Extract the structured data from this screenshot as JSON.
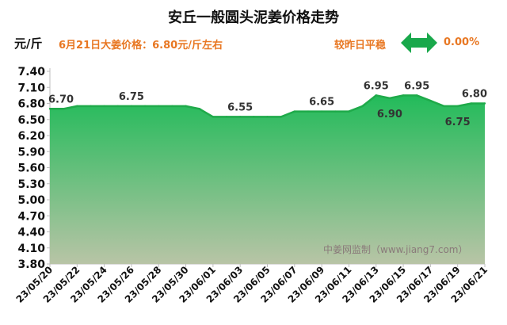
{
  "header": {
    "title": "安丘一般圆头泥姜价格走势",
    "unit": "元/斤",
    "price_note": "6月21日大姜价格：6.80元/斤左右",
    "comparison_label": "较昨日平稳",
    "change_pct": "0.00%"
  },
  "watermark": "中姜网监制（www.jiang7.com）",
  "icons": {
    "trend": "double-arrow-icon"
  },
  "colors": {
    "accent": "#e87722",
    "area_top": "#22bb5a",
    "area_bottom": "#b8c4a6",
    "line": "#1faa4a",
    "arrow": "#19a84b"
  },
  "chart_data": {
    "type": "area",
    "title": "安丘一般圆头泥姜价格走势",
    "ylabel": "元/斤",
    "ylim": [
      3.8,
      7.4
    ],
    "yticks": [
      "7.40",
      "7.10",
      "6.80",
      "6.50",
      "6.20",
      "5.90",
      "5.60",
      "5.30",
      "5.00",
      "4.70",
      "4.40",
      "4.10",
      "3.80"
    ],
    "x": [
      "23/05/20",
      "23/05/21",
      "23/05/22",
      "23/05/23",
      "23/05/24",
      "23/05/25",
      "23/05/26",
      "23/05/27",
      "23/05/28",
      "23/05/29",
      "23/05/30",
      "23/05/31",
      "23/06/01",
      "23/06/02",
      "23/06/03",
      "23/06/04",
      "23/06/05",
      "23/06/06",
      "23/06/07",
      "23/06/08",
      "23/06/09",
      "23/06/10",
      "23/06/11",
      "23/06/12",
      "23/06/13",
      "23/06/14",
      "23/06/15",
      "23/06/16",
      "23/06/17",
      "23/06/18",
      "23/06/19",
      "23/06/20",
      "23/06/21"
    ],
    "x_tick_labels": [
      "23/05/20",
      "23/05/22",
      "23/05/24",
      "23/05/26",
      "23/05/28",
      "23/05/30",
      "23/06/01",
      "23/06/03",
      "23/06/05",
      "23/06/07",
      "23/06/09",
      "23/06/11",
      "23/06/13",
      "23/06/15",
      "23/06/17",
      "23/06/19",
      "23/06/21"
    ],
    "values": [
      6.7,
      6.7,
      6.75,
      6.75,
      6.75,
      6.75,
      6.75,
      6.75,
      6.75,
      6.75,
      6.75,
      6.7,
      6.55,
      6.55,
      6.55,
      6.55,
      6.55,
      6.55,
      6.65,
      6.65,
      6.65,
      6.65,
      6.65,
      6.75,
      6.95,
      6.9,
      6.95,
      6.95,
      6.85,
      6.75,
      6.75,
      6.8,
      6.8
    ],
    "data_labels": [
      {
        "x": "23/05/20",
        "value": "6.70"
      },
      {
        "x": "23/05/26",
        "value": "6.75"
      },
      {
        "x": "23/06/03",
        "value": "6.55"
      },
      {
        "x": "23/06/09",
        "value": "6.65"
      },
      {
        "x": "23/06/13",
        "value": "6.95"
      },
      {
        "x": "23/06/14",
        "value": "6.90"
      },
      {
        "x": "23/06/16",
        "value": "6.95"
      },
      {
        "x": "23/06/19",
        "value": "6.75"
      },
      {
        "x": "23/06/21",
        "value": "6.80"
      }
    ],
    "grid": false,
    "legend": "none"
  }
}
